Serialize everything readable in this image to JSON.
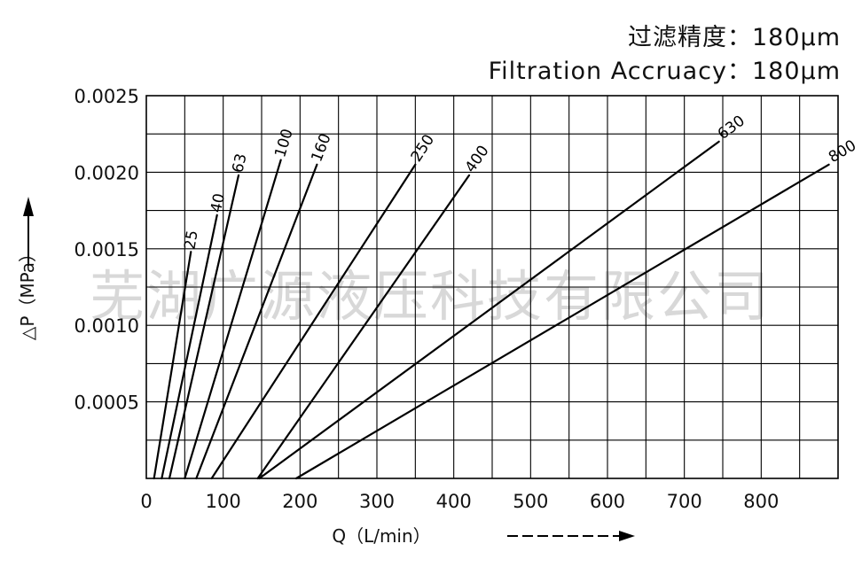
{
  "header": {
    "cn_line": "过滤精度：180μm",
    "en_line": "Filtration Accruacy：180μm"
  },
  "watermark": "芜湖广源液压科技有限公司",
  "colors": {
    "line": "#000000",
    "grid": "#000000",
    "watermark": "#d8d8d8"
  },
  "chart_data": {
    "type": "line",
    "title": "",
    "xlabel": "Q（L/min）",
    "ylabel": "△P（MPa）",
    "xlim": [
      0,
      900
    ],
    "ylim": [
      0,
      0.0025
    ],
    "x_ticks": [
      0,
      100,
      200,
      300,
      400,
      500,
      600,
      700,
      800
    ],
    "x_tick_labels": [
      "0",
      "100",
      "200",
      "300",
      "400",
      "500",
      "600",
      "700",
      "800"
    ],
    "y_ticks": [
      0.0005,
      0.001,
      0.0015,
      0.002,
      0.0025
    ],
    "y_tick_labels": [
      "0.0005",
      "0.0010",
      "0.0015",
      "0.0020",
      "0.0025"
    ],
    "grid": true,
    "grid_x_step": 50,
    "grid_y_step": 0.00025,
    "legend": "none",
    "series": [
      {
        "name": "25",
        "x": [
          10,
          58
        ],
        "y": [
          0,
          0.00148
        ]
      },
      {
        "name": "40",
        "x": [
          20,
          92
        ],
        "y": [
          0,
          0.00172
        ]
      },
      {
        "name": "63",
        "x": [
          30,
          120
        ],
        "y": [
          0,
          0.00198
        ]
      },
      {
        "name": "100",
        "x": [
          50,
          175
        ],
        "y": [
          0,
          0.00208
        ]
      },
      {
        "name": "160",
        "x": [
          65,
          222
        ],
        "y": [
          0,
          0.00205
        ]
      },
      {
        "name": "250",
        "x": [
          85,
          350
        ],
        "y": [
          0,
          0.00205
        ]
      },
      {
        "name": "400",
        "x": [
          145,
          420
        ],
        "y": [
          0,
          0.00198
        ]
      },
      {
        "name": "630",
        "x": [
          147,
          745
        ],
        "y": [
          0,
          0.0022
        ]
      },
      {
        "name": "800",
        "x": [
          195,
          888
        ],
        "y": [
          0,
          0.00205
        ]
      }
    ]
  }
}
